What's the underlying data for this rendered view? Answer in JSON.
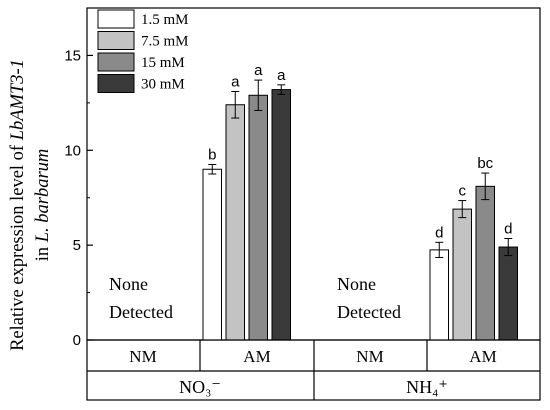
{
  "chart_data": {
    "type": "bar",
    "ylabel_line1_prefix": "Relative expression level of ",
    "ylabel_line1_gene": "LbAMT3-1",
    "ylabel_line2_prefix": "in ",
    "ylabel_line2_species": "L. barbarum",
    "ylim": [
      0,
      17.5
    ],
    "yticks": [
      "0",
      "5",
      "10",
      "15"
    ],
    "ytick_values": [
      0,
      5,
      10,
      15
    ],
    "legend_placement": "top-left",
    "series": [
      {
        "name": "1.5 mM",
        "color": "#ffffff"
      },
      {
        "name": "7.5 mM",
        "color": "#c3c3c3"
      },
      {
        "name": "15  mM",
        "color": "#8a8a8a"
      },
      {
        "name": "30  mM",
        "color": "#3a3a3a"
      }
    ],
    "groups": [
      {
        "nitrogen": "NO₃⁻",
        "nm_label": "NM",
        "am_label": "AM",
        "nm_text_line1": "None",
        "nm_text_line2": "Detected",
        "values": [
          9.0,
          12.4,
          12.9,
          13.2
        ],
        "errors": [
          0.25,
          0.7,
          0.8,
          0.25
        ],
        "letters": [
          "b",
          "a",
          "a",
          "a"
        ]
      },
      {
        "nitrogen": "NH₄⁺",
        "nm_label": "NM",
        "am_label": "AM",
        "nm_text_line1": "None",
        "nm_text_line2": "Detected",
        "values": [
          4.75,
          6.9,
          8.1,
          4.9
        ],
        "errors": [
          0.4,
          0.45,
          0.7,
          0.45
        ],
        "letters": [
          "d",
          "c",
          "bc",
          "d"
        ]
      }
    ]
  }
}
